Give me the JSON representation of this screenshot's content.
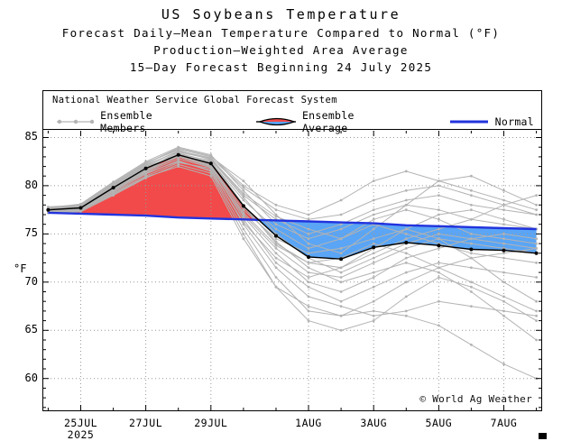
{
  "chart_data": {
    "type": "line",
    "title": "US Soybeans Temperature",
    "subtitle_lines": [
      "Forecast Daily–Mean Temperature Compared to Normal (°F)",
      "Production–Weighted Area Average",
      "15–Day Forecast Beginning 24 July 2025"
    ],
    "legend": {
      "heading": "National Weather Service Global Forecast System",
      "ensemble_members": "Ensemble Members",
      "ensemble_average": "Ensemble Average",
      "normal": "Normal"
    },
    "ylabel": "°F",
    "yticks": [
      60,
      65,
      70,
      75,
      80,
      85
    ],
    "ylim": [
      56.7,
      85.7
    ],
    "xlim": [
      -0.15,
      15.15
    ],
    "grid": "dotted",
    "x_index": [
      0,
      1,
      2,
      3,
      4,
      5,
      6,
      7,
      8,
      9,
      10,
      11,
      12,
      13,
      14,
      15
    ],
    "xticks": [
      {
        "day": 1,
        "label": "25JUL",
        "sub": "2025"
      },
      {
        "day": 3,
        "label": "27JUL"
      },
      {
        "day": 5,
        "label": "29JUL"
      },
      {
        "day": 8,
        "label": "1AUG"
      },
      {
        "day": 10,
        "label": "3AUG"
      },
      {
        "day": 12,
        "label": "5AUG"
      },
      {
        "day": 14,
        "label": "7AUG"
      }
    ],
    "series": {
      "ensemble_average": [
        77.5,
        77.7,
        79.8,
        81.8,
        83.2,
        82.3,
        77.9,
        74.8,
        72.6,
        72.4,
        73.6,
        74.1,
        73.8,
        73.4,
        73.3,
        73.0
      ],
      "normal": [
        77.2,
        77.1,
        77.0,
        76.9,
        76.7,
        76.6,
        76.5,
        76.4,
        76.3,
        76.2,
        76.1,
        75.9,
        75.8,
        75.7,
        75.6,
        75.5
      ],
      "members": [
        [
          77.2,
          77.4,
          79.5,
          81.5,
          83.5,
          82.8,
          79.0,
          76.5,
          75.0,
          76.0,
          77.5,
          78.5,
          79.0,
          78.0,
          77.5,
          77.0
        ],
        [
          77.8,
          78.0,
          80.2,
          82.3,
          83.8,
          83.0,
          80.5,
          77.0,
          74.0,
          73.0,
          75.5,
          78.0,
          80.5,
          81.0,
          79.5,
          78.0
        ],
        [
          77.4,
          77.6,
          79.6,
          81.6,
          83.0,
          82.0,
          76.5,
          72.0,
          69.5,
          68.0,
          69.5,
          71.0,
          72.0,
          71.5,
          71.0,
          70.5
        ],
        [
          77.6,
          77.9,
          80.0,
          82.0,
          83.4,
          82.5,
          78.5,
          75.5,
          73.5,
          74.5,
          76.0,
          75.0,
          74.0,
          73.0,
          72.5,
          72.0
        ],
        [
          77.3,
          77.5,
          79.3,
          81.2,
          82.6,
          81.5,
          75.5,
          70.5,
          67.0,
          66.5,
          68.0,
          70.0,
          71.5,
          72.5,
          73.0,
          73.5
        ],
        [
          77.7,
          78.1,
          80.4,
          82.5,
          84.0,
          83.2,
          79.5,
          76.0,
          74.5,
          75.5,
          77.0,
          78.0,
          77.5,
          76.5,
          76.0,
          75.5
        ],
        [
          77.5,
          77.8,
          79.9,
          81.9,
          83.1,
          82.2,
          77.0,
          73.5,
          71.0,
          70.5,
          72.0,
          73.5,
          74.5,
          74.0,
          73.5,
          73.0
        ],
        [
          77.4,
          77.7,
          79.7,
          81.7,
          83.3,
          82.6,
          78.0,
          74.0,
          72.0,
          71.5,
          73.0,
          74.5,
          75.5,
          76.5,
          78.0,
          79.0
        ],
        [
          77.6,
          77.8,
          80.1,
          82.1,
          83.6,
          82.9,
          79.8,
          77.5,
          76.5,
          77.0,
          78.5,
          79.5,
          80.0,
          79.0,
          78.0,
          77.0
        ],
        [
          77.3,
          77.4,
          79.2,
          81.0,
          82.4,
          81.8,
          76.0,
          71.5,
          68.5,
          67.5,
          66.5,
          67.0,
          68.0,
          67.5,
          67.0,
          66.5
        ],
        [
          77.5,
          77.9,
          80.0,
          82.0,
          83.0,
          82.1,
          77.5,
          74.5,
          73.0,
          73.5,
          74.5,
          75.5,
          74.5,
          72.5,
          70.0,
          68.0
        ],
        [
          77.4,
          77.6,
          79.4,
          81.4,
          82.8,
          81.9,
          76.8,
          73.0,
          70.0,
          69.0,
          70.5,
          72.5,
          73.5,
          74.5,
          75.0,
          74.5
        ],
        [
          77.7,
          78.0,
          80.3,
          82.4,
          83.7,
          82.7,
          78.8,
          75.0,
          72.5,
          71.0,
          72.5,
          74.0,
          75.0,
          74.5,
          74.0,
          73.5
        ],
        [
          77.2,
          77.3,
          79.0,
          80.8,
          82.2,
          81.3,
          75.0,
          69.5,
          66.0,
          65.0,
          66.0,
          68.5,
          70.5,
          69.5,
          68.0,
          66.0
        ],
        [
          77.6,
          78.0,
          80.2,
          82.2,
          83.5,
          82.8,
          79.2,
          76.8,
          75.5,
          74.5,
          76.5,
          77.5,
          76.5,
          75.0,
          74.5,
          74.0
        ],
        [
          77.5,
          77.7,
          79.8,
          81.8,
          83.2,
          82.4,
          77.8,
          74.2,
          71.5,
          70.0,
          71.0,
          72.0,
          71.0,
          69.0,
          66.5,
          64.0
        ],
        [
          77.4,
          77.5,
          79.5,
          81.3,
          82.5,
          81.6,
          76.2,
          72.5,
          70.5,
          71.5,
          73.5,
          75.5,
          77.0,
          77.5,
          76.5,
          75.5
        ],
        [
          77.3,
          77.6,
          79.7,
          81.5,
          83.0,
          82.0,
          77.2,
          73.8,
          72.0,
          72.5,
          74.0,
          73.0,
          71.5,
          70.0,
          68.5,
          67.0
        ],
        [
          77.6,
          77.9,
          80.1,
          82.3,
          83.9,
          83.1,
          80.0,
          78.0,
          77.0,
          78.5,
          80.5,
          81.5,
          80.5,
          79.5,
          78.5,
          77.5
        ],
        [
          77.2,
          77.4,
          79.1,
          80.9,
          82.0,
          81.0,
          74.5,
          69.5,
          67.5,
          66.5,
          67.0,
          66.5,
          65.5,
          63.5,
          61.5,
          60.0
        ]
      ]
    },
    "colors": {
      "above_fill": "#f24a4a",
      "below_fill": "#5aa5f5",
      "normal_line": "#2233dd",
      "average_line": "#000000",
      "member_line": "#b3b3b3",
      "grid_line": "#999999"
    },
    "copyright": "© World Ag Weather"
  }
}
